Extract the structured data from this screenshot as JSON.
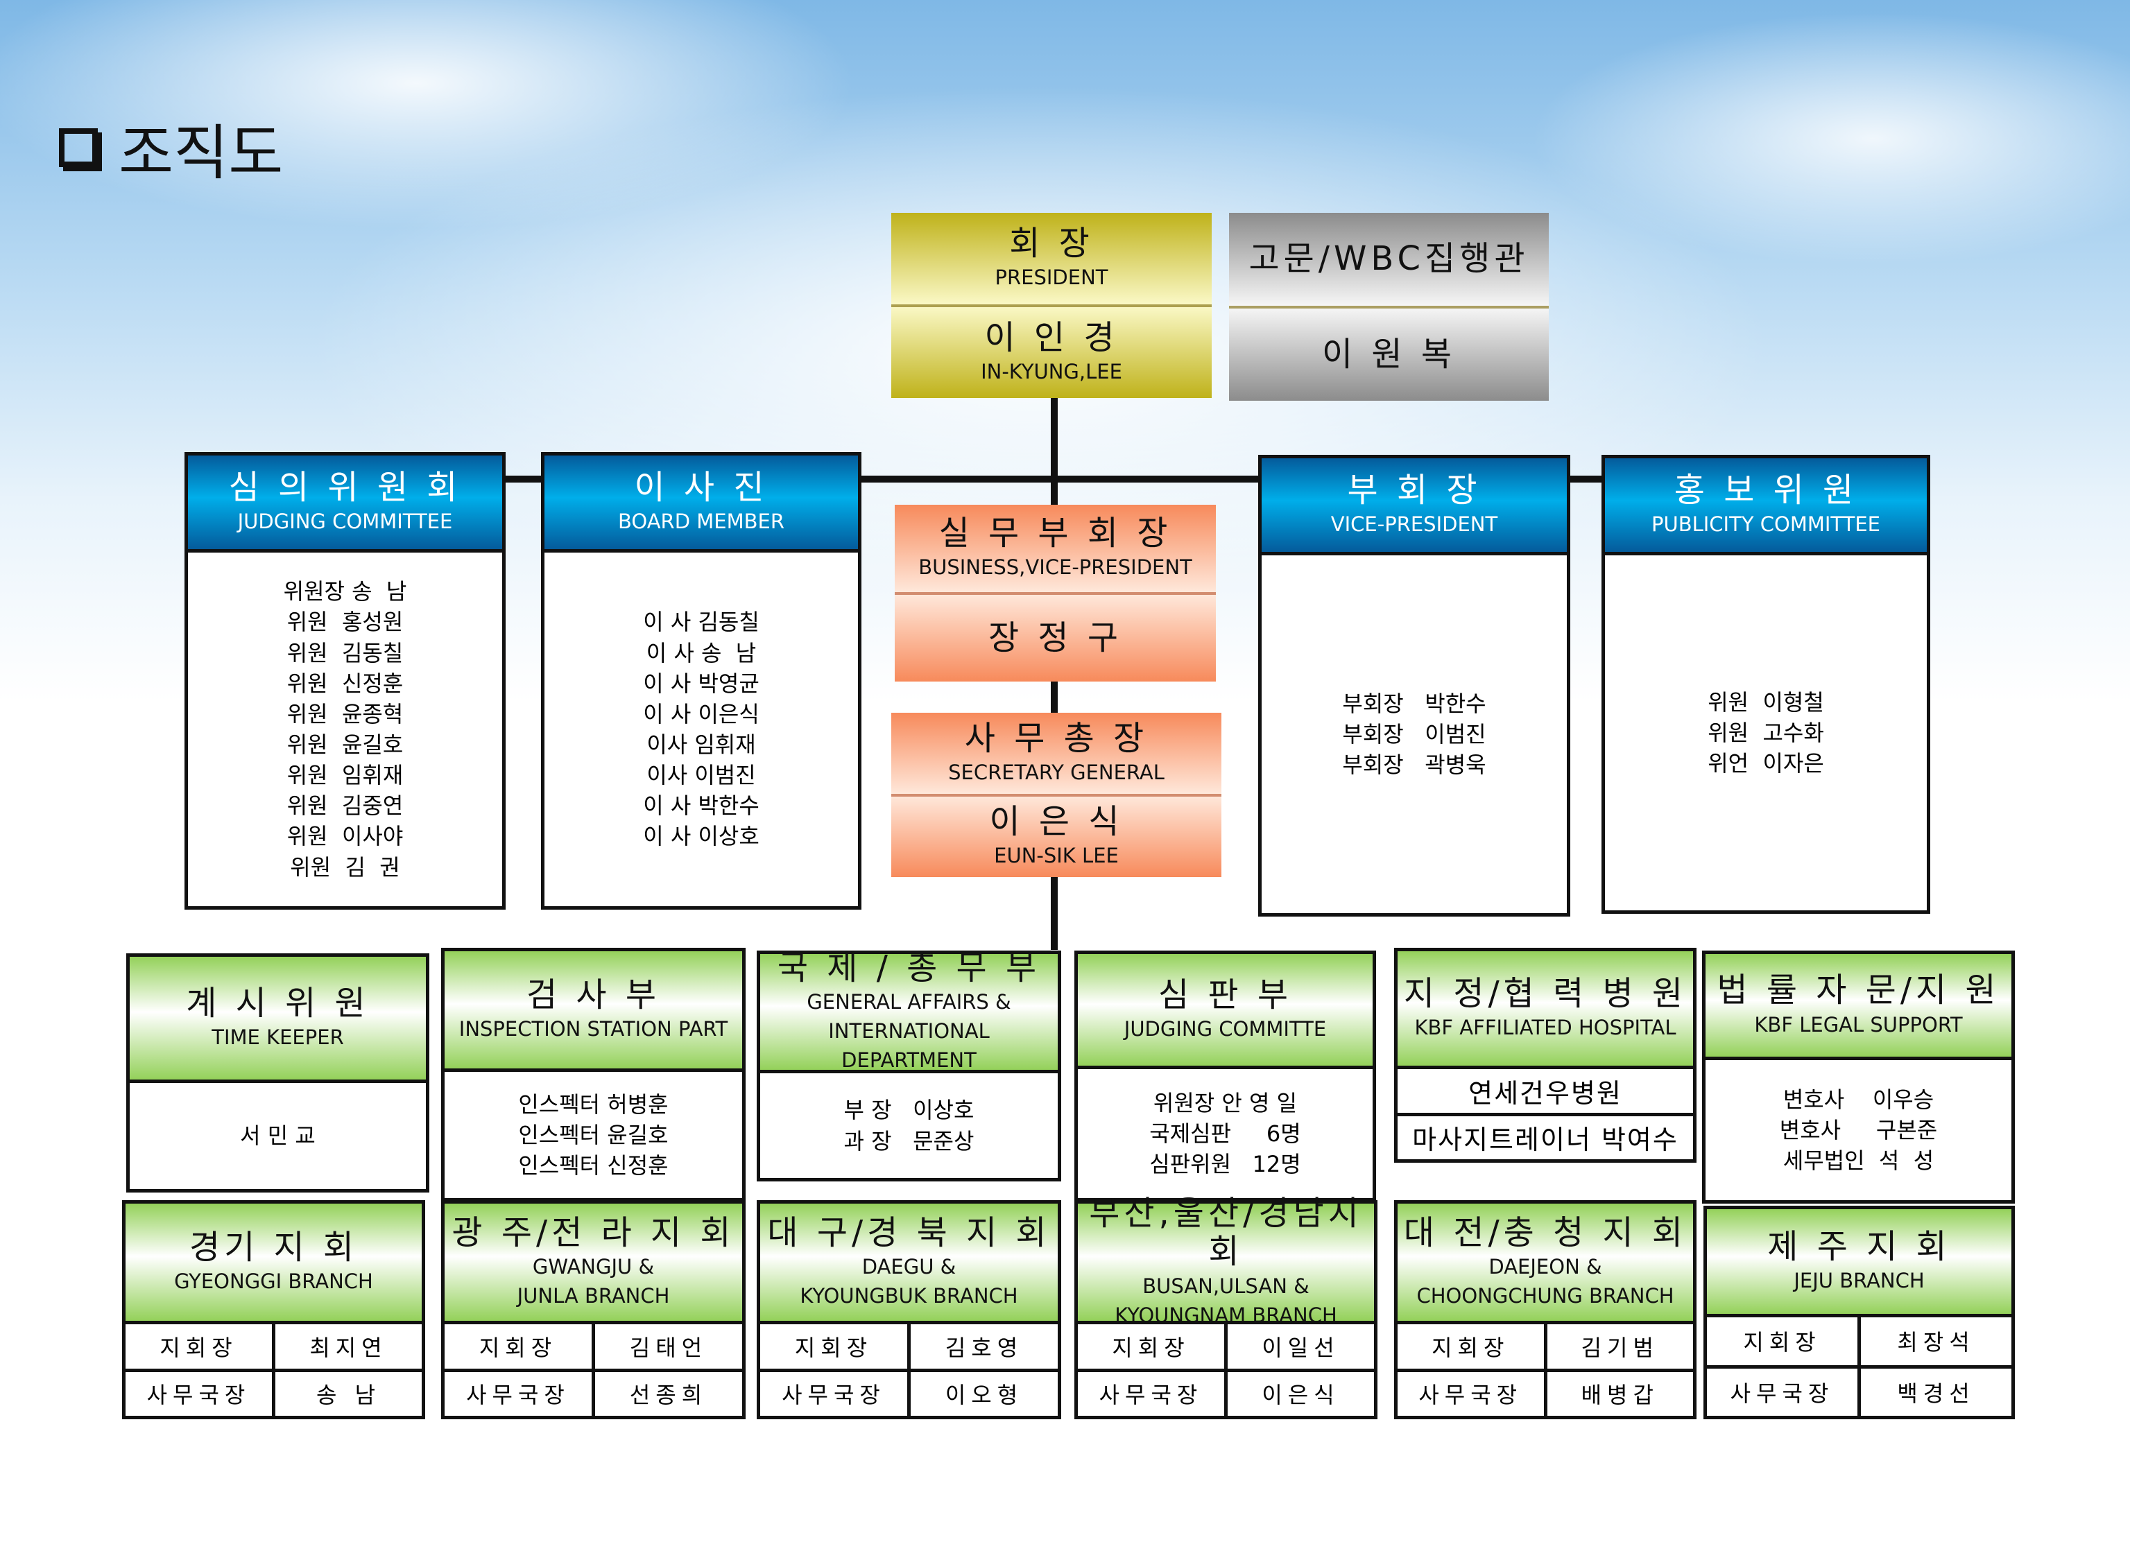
{
  "page_title": "조직도",
  "colors": {
    "president": "#c9bd1f",
    "advisor": "#a8a8a8",
    "secretariat": "#f78a5b",
    "committee_header": "#0a86cc",
    "department_header": "#94d15a"
  },
  "top": {
    "president": {
      "style": "gold",
      "sections": [
        {
          "ko": "회    장",
          "en": [
            "PRESIDENT"
          ]
        },
        {
          "ko": "이 인 경",
          "en": [
            "IN-KYUNG,LEE"
          ]
        }
      ]
    },
    "advisor": {
      "style": "silver",
      "sections": [
        {
          "ko": "고문/WBC집행관",
          "en": []
        },
        {
          "ko": "이 원 복",
          "en": []
        }
      ]
    },
    "business_vp": {
      "style": "orange",
      "sections": [
        {
          "ko": "실 무 부 회 장",
          "en": [
            "BUSINESS,VICE-PRESIDENT"
          ]
        },
        {
          "ko": "장 정 구",
          "en": []
        }
      ]
    },
    "secretary_general": {
      "style": "orange",
      "sections": [
        {
          "ko": "사 무 총 장",
          "en": [
            "SECRETARY GENERAL"
          ]
        },
        {
          "ko": "이 은 식",
          "en": [
            "EUN-SIK LEE"
          ]
        }
      ]
    }
  },
  "committees": [
    {
      "id": "judging-committee",
      "ko": "심 의 위 원 회",
      "en": [
        "JUDGING COMMITTEE"
      ],
      "lines": [
        "위원장 송  남",
        "위원  홍성원",
        "위원  김동칠",
        "위원  신정훈",
        "위원  윤종혁",
        "위원  윤길호",
        "위원  임휘재",
        "위원  김중연",
        "위원  이사야",
        "위원  김  권"
      ]
    },
    {
      "id": "board-member",
      "ko": "이 사 진",
      "en": [
        "BOARD MEMBER"
      ],
      "lines": [
        "이 사 김동칠",
        "이 사 송  남",
        "이 사 박영균",
        "이 사 이은식",
        "이사 임휘재",
        "이사 이범진",
        "이 사 박한수",
        "이 사 이상호"
      ]
    },
    {
      "id": "vice-president",
      "ko": "부 회 장",
      "en": [
        "VICE-PRESIDENT"
      ],
      "lines": [
        "부회장   박한수",
        "부회장   이범진",
        "부회장   곽병욱"
      ]
    },
    {
      "id": "publicity-committee",
      "ko": "홍 보 위 원",
      "en": [
        "PUBLICITY COMMITTEE"
      ],
      "lines": [
        "위원  이형철",
        "위원  고수화",
        "위언  이자은"
      ]
    }
  ],
  "departments": [
    {
      "id": "time-keeper",
      "ko": "계 시 위 원",
      "en": [
        "TIME KEEPER"
      ],
      "lines": [
        "서 민 교"
      ]
    },
    {
      "id": "inspection",
      "ko": "검 사 부",
      "en": [
        "INSPECTION STATION PART"
      ],
      "lines": [
        "인스펙터 허병훈",
        "인스펙터 윤길호",
        "인스펙터 신정훈"
      ]
    },
    {
      "id": "general-affairs",
      "ko": "국 제 / 총 무 부",
      "en": [
        "GENERAL AFFAIRS &",
        "INTERNATIONAL DEPARTMENT"
      ],
      "lines": [
        "부 장   이상호",
        "과 장   문준상"
      ]
    },
    {
      "id": "judging-dept",
      "ko": "심 판 부",
      "en": [
        "JUDGING COMMITTE"
      ],
      "lines": [
        "위원장 안 영 일",
        "국제심판     6명",
        "심판위원   12명"
      ]
    },
    {
      "id": "hospital",
      "ko": "지 정/협 력 병 원",
      "en": [
        "KBF AFFILIATED HOSPITAL"
      ],
      "rows": [
        [
          "연세건우병원"
        ],
        [
          "마사지트레이너 박여수"
        ]
      ]
    },
    {
      "id": "legal",
      "ko": "법 률 자 문/지 원",
      "en": [
        "KBF LEGAL SUPPORT"
      ],
      "lines": [
        "변호사    이우승",
        "변호사     구본준",
        "세무법인  석  성"
      ]
    }
  ],
  "branches": [
    {
      "id": "gyeonggi",
      "ko": "경기 지 회",
      "en": [
        "GYEONGGI BRANCH"
      ],
      "rows": [
        [
          "지회장",
          "최지연"
        ],
        [
          "사무국장",
          "송 남"
        ]
      ]
    },
    {
      "id": "gwangju",
      "ko": "광 주/전 라 지 회",
      "en": [
        "GWANGJU &",
        "JUNLA BRANCH"
      ],
      "rows": [
        [
          "지회장",
          "김태언"
        ],
        [
          "사무국장",
          "선종희"
        ]
      ]
    },
    {
      "id": "daegu",
      "ko": "대 구/경 북 지 회",
      "en": [
        "DAEGU &",
        "KYOUNGBUK BRANCH"
      ],
      "rows": [
        [
          "지회장",
          "김호영"
        ],
        [
          "사무국장",
          "이오형"
        ]
      ]
    },
    {
      "id": "busan",
      "ko": "부산,울산/경남지회",
      "en": [
        "BUSAN,ULSAN &",
        "KYOUNGNAM BRANCH"
      ],
      "rows": [
        [
          "지회장",
          "이일선"
        ],
        [
          "사무국장",
          "이은식"
        ]
      ]
    },
    {
      "id": "daejeon",
      "ko": "대 전/충 청 지 회",
      "en": [
        "DAEJEON &",
        "CHOONGCHUNG BRANCH"
      ],
      "rows": [
        [
          "지회장",
          "김기범"
        ],
        [
          "사무국장",
          "배병갑"
        ]
      ]
    },
    {
      "id": "jeju",
      "ko": "제 주 지 회",
      "en": [
        "JEJU BRANCH"
      ],
      "rows": [
        [
          "지회장",
          "최장석"
        ],
        [
          "사무국장",
          "백경선"
        ]
      ]
    }
  ]
}
